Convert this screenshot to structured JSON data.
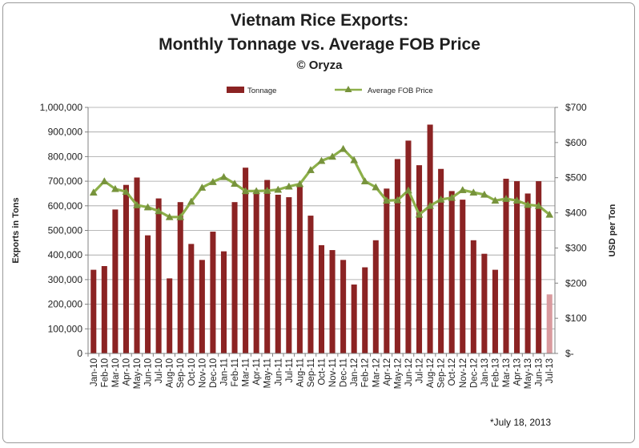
{
  "title": {
    "line1": "Vietnam Rice Exports:",
    "line2": "Monthly Tonnage vs. Average FOB Price",
    "line3": "© Oryza"
  },
  "footnote": "*July 18, 2013",
  "chart_data": {
    "type": "bar",
    "categories": [
      "Jan-10",
      "Feb-10",
      "Mar-10",
      "Apr-10",
      "May-10",
      "Jun-10",
      "Jul-10",
      "Aug-10",
      "Sep-10",
      "Oct-10",
      "Nov-10",
      "Dec-10",
      "Jan-11",
      "Feb-11",
      "Mar-11",
      "Apr-11",
      "May-11",
      "Jun-11",
      "Jul-11",
      "Aug-11",
      "Sep-11",
      "Oct-11",
      "Nov-11",
      "Dec-11",
      "Jan-12",
      "Feb-12",
      "Mar-12",
      "Apr-12",
      "May-12",
      "Jun-12",
      "Jul-12",
      "Aug-12",
      "Sep-12",
      "Oct-12",
      "Nov-12",
      "Dec-12",
      "Jan-13",
      "Feb-13",
      "Mar-13",
      "Apr-13",
      "May-13",
      "Jun-13",
      "Jul-13"
    ],
    "series": [
      {
        "name": "Tonnage",
        "kind": "bar",
        "axis": "left",
        "color": "#8b2323",
        "last_bar_color": "#d99a9e",
        "values": [
          340000,
          355000,
          585000,
          685000,
          715000,
          480000,
          630000,
          305000,
          615000,
          445000,
          380000,
          495000,
          415000,
          615000,
          755000,
          665000,
          705000,
          645000,
          635000,
          680000,
          560000,
          440000,
          420000,
          380000,
          280000,
          350000,
          460000,
          670000,
          790000,
          865000,
          765000,
          930000,
          750000,
          660000,
          625000,
          460000,
          405000,
          340000,
          710000,
          700000,
          650000,
          700000,
          240000
        ]
      },
      {
        "name": "Average FOB Price",
        "kind": "line",
        "axis": "right",
        "color": "#8db04a",
        "values": [
          458,
          490,
          468,
          460,
          422,
          416,
          405,
          388,
          388,
          432,
          472,
          488,
          502,
          483,
          462,
          462,
          463,
          466,
          475,
          482,
          522,
          548,
          560,
          582,
          550,
          490,
          473,
          435,
          436,
          464,
          395,
          420,
          438,
          443,
          465,
          458,
          452,
          435,
          440,
          435,
          423,
          420,
          395
        ]
      }
    ],
    "ylabel": "Exports in Tons",
    "y2label": "USD per Ton",
    "ylim": [
      0,
      1000000
    ],
    "y2lim": [
      0,
      700
    ],
    "yticks": [
      "0",
      "100,000",
      "200,000",
      "300,000",
      "400,000",
      "500,000",
      "600,000",
      "700,000",
      "800,000",
      "900,000",
      "1,000,000"
    ],
    "y2ticks": [
      "$-",
      "$100",
      "$200",
      "$300",
      "$400",
      "$500",
      "$600",
      "$700"
    ],
    "legend_position": "top-center",
    "grid": "horizontal"
  }
}
